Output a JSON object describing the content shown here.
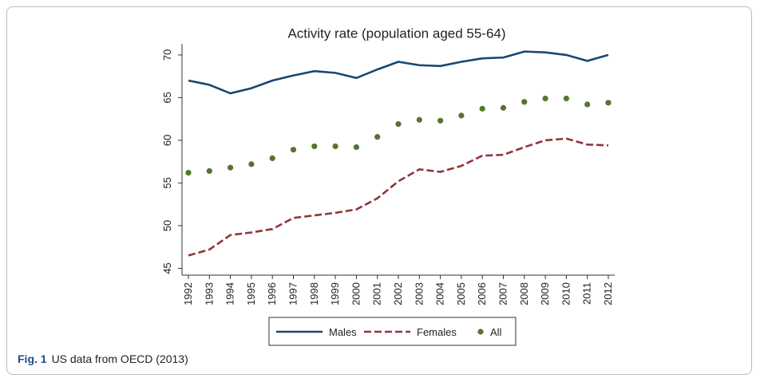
{
  "chart_data": {
    "type": "line",
    "title": "Activity rate (population aged 55-64)",
    "categories": [
      "1992",
      "1993",
      "1994",
      "1995",
      "1996",
      "1997",
      "1998",
      "1999",
      "2000",
      "2001",
      "2002",
      "2003",
      "2004",
      "2005",
      "2006",
      "2007",
      "2008",
      "2009",
      "2010",
      "2011",
      "2012"
    ],
    "series": [
      {
        "name": "Males",
        "color": "#1a476f",
        "style": "solid",
        "values": [
          67.0,
          66.5,
          65.5,
          66.1,
          67.0,
          67.6,
          68.1,
          67.9,
          67.3,
          68.3,
          69.2,
          68.8,
          68.7,
          69.2,
          69.6,
          69.7,
          70.4,
          70.3,
          70.0,
          69.3,
          70.0
        ]
      },
      {
        "name": "Females",
        "color": "#90353b",
        "style": "dashed",
        "values": [
          46.5,
          47.2,
          48.9,
          49.2,
          49.6,
          50.9,
          51.2,
          51.5,
          51.9,
          53.2,
          55.2,
          56.6,
          56.3,
          57.0,
          58.2,
          58.3,
          59.2,
          60.0,
          60.2,
          59.5,
          59.4
        ]
      },
      {
        "name": "All",
        "color": "#55752f",
        "style": "dots",
        "values": [
          56.2,
          56.4,
          56.8,
          57.2,
          57.9,
          58.9,
          59.3,
          59.3,
          59.2,
          60.4,
          61.9,
          62.4,
          62.3,
          62.9,
          63.7,
          63.8,
          64.5,
          64.9,
          64.9,
          64.2,
          64.4
        ]
      }
    ],
    "ylim": [
      44.2,
      71.3
    ],
    "yticks": [
      45,
      50,
      55,
      60,
      65,
      70
    ],
    "grid": false,
    "legend": "bottom"
  },
  "caption": {
    "label": "Fig. 1",
    "text": "US data from OECD (2013)"
  }
}
